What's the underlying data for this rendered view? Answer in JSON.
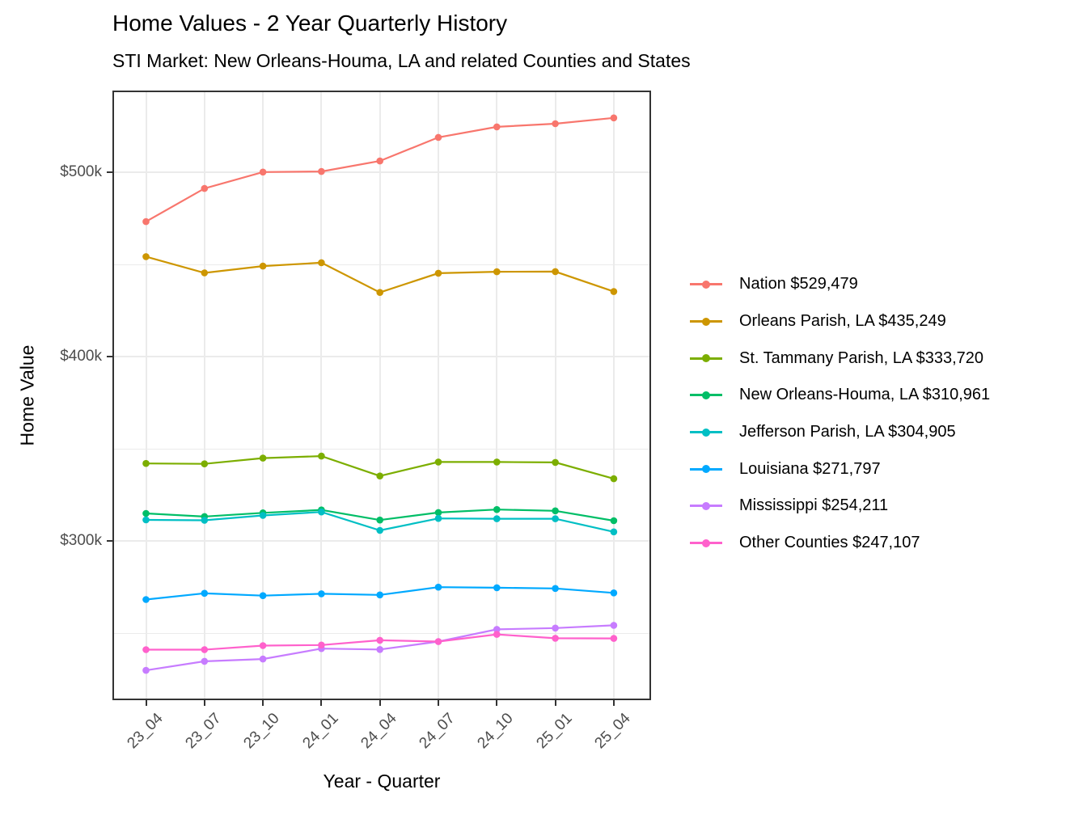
{
  "chart_data": {
    "type": "line",
    "title": "Home Values - 2 Year Quarterly History",
    "subtitle": "STI Market: New Orleans-Houma, LA and related Counties and States",
    "xlabel": "Year - Quarter",
    "ylabel": "Home Value",
    "categories": [
      "23_04",
      "23_07",
      "23_10",
      "24_01",
      "24_04",
      "24_07",
      "24_10",
      "25_01",
      "25_04"
    ],
    "y_ticks": [
      {
        "label": "$500k",
        "value": 500000
      },
      {
        "label": "$400k",
        "value": 400000
      },
      {
        "label": "$300k",
        "value": 300000
      }
    ],
    "y_minor_ticks": [
      450000,
      350000,
      250000
    ],
    "ylim": [
      215000,
      544000
    ],
    "grid": "major and minor horizontal, major vertical, light gray on white",
    "legend_position": "right",
    "marker": "filled circle on solid line",
    "series": [
      {
        "name": "Nation",
        "legend_label": "Nation $529,479",
        "color": "#F8766D",
        "values": [
          473200,
          491200,
          500100,
          500400,
          506100,
          518900,
          524600,
          526300,
          529479
        ]
      },
      {
        "name": "Orleans Parish, LA",
        "legend_label": "Orleans Parish, LA $435,249",
        "color": "#CD9600",
        "values": [
          454200,
          445400,
          449100,
          450900,
          434800,
          445200,
          446000,
          446100,
          435249
        ]
      },
      {
        "name": "St. Tammany Parish, LA",
        "legend_label": "St. Tammany Parish, LA $333,720",
        "color": "#7CAE00",
        "values": [
          342000,
          341800,
          344900,
          346000,
          335200,
          342800,
          342800,
          342600,
          333720
        ]
      },
      {
        "name": "New Orleans-Houma, LA",
        "legend_label": "New Orleans-Houma, LA $310,961",
        "color": "#00BE67",
        "values": [
          314900,
          313200,
          315200,
          316800,
          311300,
          315400,
          317000,
          316300,
          310961
        ]
      },
      {
        "name": "Jefferson Parish, LA",
        "legend_label": "Jefferson Parish, LA $304,905",
        "color": "#00BFC4",
        "values": [
          311400,
          311200,
          313800,
          315700,
          305700,
          312200,
          312000,
          312000,
          304905
        ]
      },
      {
        "name": "Louisiana",
        "legend_label": "Louisiana $271,797",
        "color": "#00A9FF",
        "values": [
          268200,
          271600,
          270300,
          271300,
          270700,
          274900,
          274600,
          274200,
          271797
        ]
      },
      {
        "name": "Mississippi",
        "legend_label": "Mississippi $254,211",
        "color": "#C77CFF",
        "values": [
          229800,
          234700,
          235900,
          241600,
          241100,
          245400,
          252000,
          252700,
          254211
        ]
      },
      {
        "name": "Other Counties",
        "legend_label": "Other Counties $247,107",
        "color": "#FF61CC",
        "values": [
          241000,
          241000,
          243200,
          243500,
          246100,
          245400,
          249300,
          247200,
          247107
        ]
      }
    ]
  }
}
